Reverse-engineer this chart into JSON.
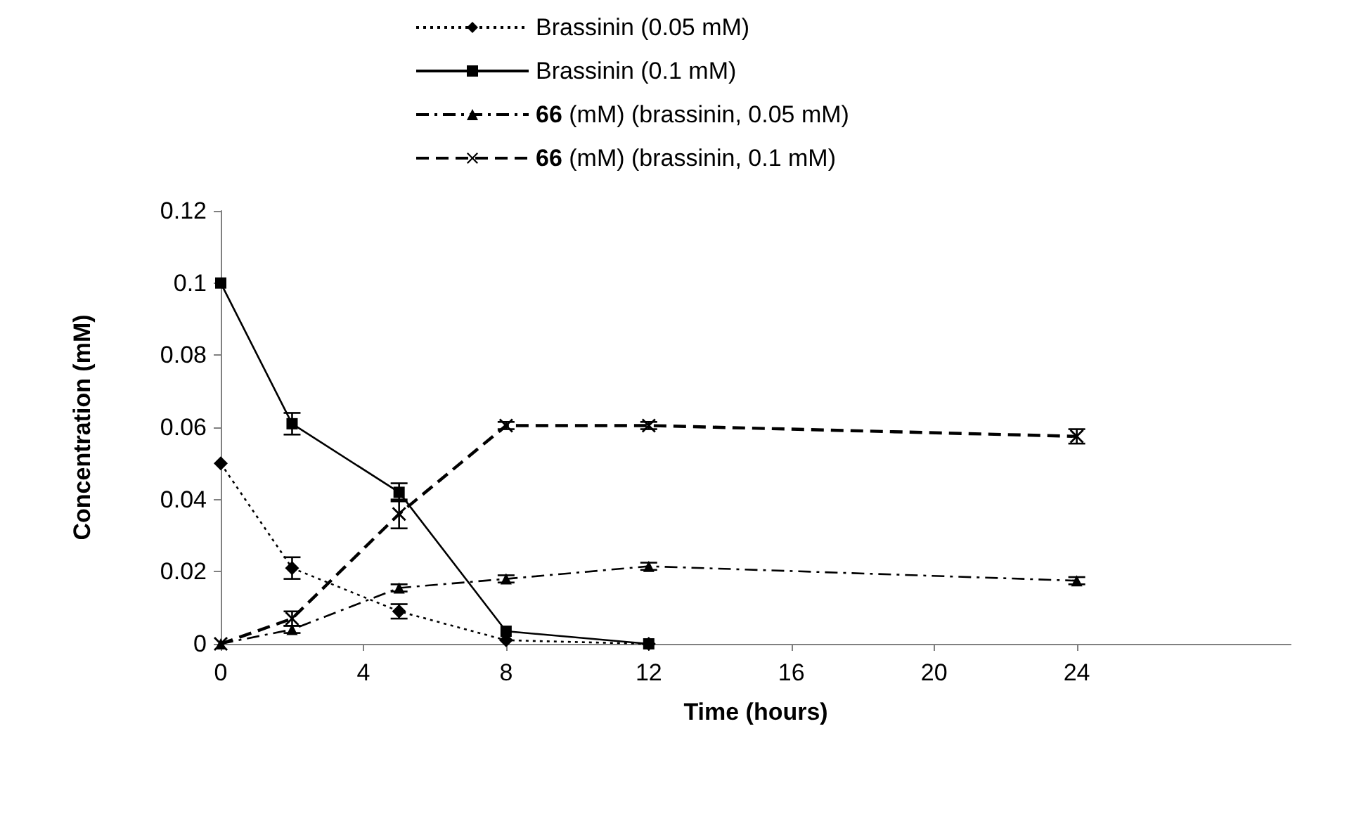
{
  "chart_data": {
    "type": "line",
    "xlabel": "Time (hours)",
    "ylabel": "Concentration (mM)",
    "xlim": [
      0,
      30
    ],
    "xticks": [
      0,
      4,
      8,
      12,
      16,
      20,
      24
    ],
    "ylim": [
      0,
      0.12
    ],
    "yticks": [
      0,
      0.02,
      0.04,
      0.06,
      0.08,
      0.1,
      0.12
    ],
    "grid": false,
    "legend": "top",
    "series": [
      {
        "name": "Brassinin (0.05 mM)",
        "color": "#000000",
        "marker": "diamond",
        "line_style": "dotted",
        "x": [
          0,
          2,
          5,
          8,
          12
        ],
        "values": [
          0.05,
          0.021,
          0.009,
          0.001,
          0
        ],
        "errors": [
          null,
          0.003,
          0.002,
          null,
          null
        ]
      },
      {
        "name": "Brassinin (0.1 mM)",
        "color": "#000000",
        "marker": "square",
        "line_style": "solid",
        "x": [
          0,
          2,
          5,
          8,
          12
        ],
        "values": [
          0.1,
          0.061,
          0.042,
          0.0035,
          0
        ],
        "errors": [
          null,
          0.003,
          0.0025,
          null,
          null
        ]
      },
      {
        "name": "66 (mM) (brassinin, 0.05 mM)",
        "color": "#000000",
        "marker": "triangle",
        "line_style": "dashdot",
        "x": [
          0,
          2,
          5,
          8,
          12,
          24
        ],
        "values": [
          0,
          0.004,
          0.0155,
          0.018,
          0.0215,
          0.0175
        ],
        "errors": [
          null,
          0.001,
          0.001,
          0.001,
          0.001,
          0.001
        ]
      },
      {
        "name": "66 (mM) (brassinin, 0.1 mM)",
        "color": "#000000",
        "marker": "cross",
        "line_style": "dashed",
        "x": [
          0,
          2,
          5,
          8,
          12,
          24
        ],
        "values": [
          0,
          0.007,
          0.036,
          0.0605,
          0.0605,
          0.0575
        ],
        "errors": [
          null,
          0.002,
          0.004,
          0.001,
          0.001,
          0.002
        ]
      }
    ]
  }
}
